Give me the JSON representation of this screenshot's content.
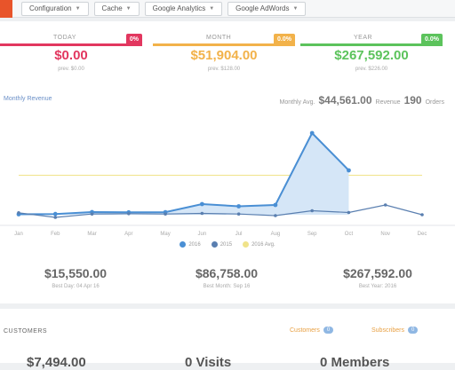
{
  "toolbar": {
    "menus": [
      "Configuration",
      "Cache",
      "Google Analytics",
      "Google AdWords"
    ]
  },
  "kpis": [
    {
      "label": "TODAY",
      "badge": "0%",
      "value": "$0.00",
      "sub": "prev. $0.00",
      "color": "#e2375f"
    },
    {
      "label": "MONTH",
      "badge": "0.0%",
      "value": "$51,904.00",
      "sub": "prev. $128.00",
      "color": "#f2b24a"
    },
    {
      "label": "YEAR",
      "badge": "0.0%",
      "value": "$267,592.00",
      "sub": "prev. $226.00",
      "color": "#5cc35c"
    }
  ],
  "chart": {
    "heading": "Monthly Revenue",
    "avg_label": "Monthly Avg.",
    "avg_value": "$44,561.00",
    "orders_label": "Revenue",
    "orders_value": "190",
    "orders_suffix": "Orders"
  },
  "chart_data": {
    "type": "line",
    "categories": [
      "Jan",
      "Feb",
      "Mar",
      "Apr",
      "May",
      "Jun",
      "Jul",
      "Aug",
      "Sep",
      "Oct",
      "Nov",
      "Dec"
    ],
    "series": [
      {
        "name": "2016",
        "color": "#4a8fd4",
        "values": [
          500,
          800,
          3000,
          2700,
          2900,
          12000,
          9500,
          11000,
          92000,
          50000,
          null,
          null
        ]
      },
      {
        "name": "2015",
        "color": "#5a7fb0",
        "values": [
          2200,
          -3000,
          800,
          1200,
          800,
          1500,
          800,
          -1000,
          4500,
          2500,
          11000,
          0
        ]
      },
      {
        "name": "2016 Avg.",
        "color": "#f0e38a",
        "values": [
          44561,
          44561,
          44561,
          44561,
          44561,
          44561,
          44561,
          44561,
          44561,
          44561,
          44561,
          44561
        ]
      }
    ],
    "ylim": [
      -8000,
      100000
    ]
  },
  "stats": [
    {
      "value": "$15,550.00",
      "label": "Best Day: 04 Apr 16"
    },
    {
      "value": "$86,758.00",
      "label": "Best Month: Sep 16"
    },
    {
      "value": "$267,592.00",
      "label": "Best Year: 2016"
    }
  ],
  "customers": {
    "title": "CUSTOMERS",
    "pill1": "Customers",
    "pill1_count": "0",
    "pill2": "Subscribers",
    "pill2_count": "0",
    "big": [
      "$7,494.00",
      "0 Visits",
      "0 Members"
    ]
  }
}
